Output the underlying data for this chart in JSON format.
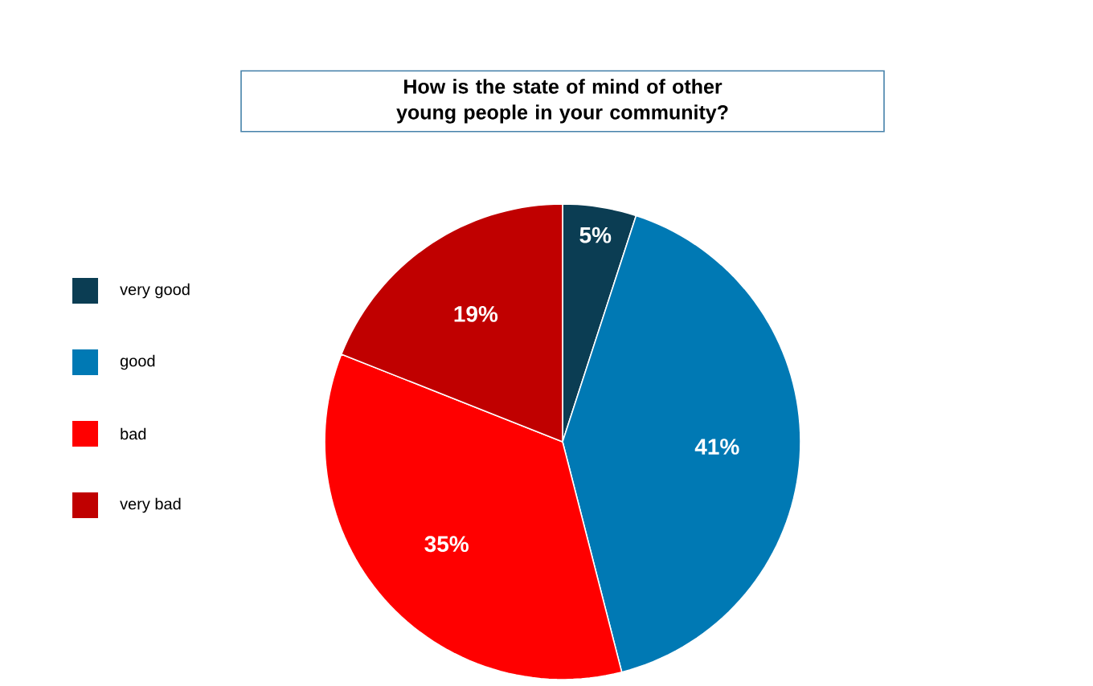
{
  "chart_data": {
    "type": "pie",
    "title": "How is the state of mind of other young people in your community?",
    "categories": [
      "very good",
      "good",
      "bad",
      "very bad"
    ],
    "values": [
      5,
      41,
      35,
      19
    ],
    "value_labels": [
      "5%",
      "41%",
      "35%",
      "19%"
    ],
    "colors": [
      "#0b3d53",
      "#0079b4",
      "#ff0000",
      "#c00000"
    ],
    "legend": "left"
  }
}
